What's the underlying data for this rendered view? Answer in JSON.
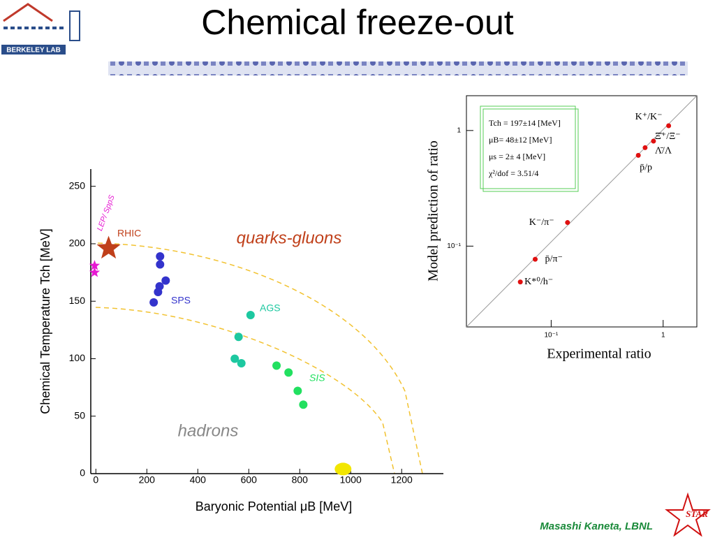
{
  "header": {
    "title": "Chemical freeze-out",
    "logo": "BERKELEY LAB"
  },
  "footer": {
    "author": "Masashi Kaneta, LBNL",
    "badge": "STAR"
  },
  "chart_data": [
    {
      "type": "scatter",
      "xlabel": "Baryonic Potential μB [MeV]",
      "ylabel": "Chemical Temperature Tch [MeV]",
      "xlim": [
        -20,
        1350
      ],
      "ylim": [
        0,
        265
      ],
      "xticks": [
        0,
        200,
        400,
        600,
        800,
        1000,
        1200
      ],
      "yticks": [
        0,
        50,
        100,
        150,
        200,
        250
      ],
      "annotations": [
        "quarks-gluons",
        "hadrons"
      ],
      "series": [
        {
          "name": "LEP/ SppS",
          "color": "#e619d2",
          "marker": "star",
          "x": [
            -5,
            -5
          ],
          "y": [
            175,
            181
          ]
        },
        {
          "name": "RHIC",
          "color": "#c0401a",
          "marker": "bigstar",
          "x": [
            50
          ],
          "y": [
            196
          ]
        },
        {
          "name": "SPS",
          "color": "#3333cc",
          "marker": "circle",
          "x": [
            252,
            252,
            274,
            250,
            244,
            227
          ],
          "y": [
            189,
            182,
            168,
            163,
            158,
            149
          ]
        },
        {
          "name": "AGS",
          "color": "#1dc8a0",
          "marker": "circle",
          "x": [
            607,
            560,
            545,
            571
          ],
          "y": [
            138,
            119,
            100,
            96
          ]
        },
        {
          "name": "SIS",
          "color": "#22e060",
          "marker": "circle",
          "x": [
            709,
            756,
            792,
            814
          ],
          "y": [
            94,
            88,
            72,
            60
          ]
        },
        {
          "color": "#f2e600",
          "marker": "circle",
          "x": [
            970
          ],
          "y": [
            4
          ]
        }
      ]
    },
    {
      "type": "scatter",
      "log": true,
      "xlabel": "Experimental ratio",
      "ylabel": "Model prediction of ratio",
      "xlim": [
        0.0175,
        2
      ],
      "ylim": [
        0.02,
        2
      ],
      "xticks": [
        {
          "value": 0.1,
          "label": "10⁻¹"
        },
        1
      ],
      "yticks": [
        {
          "value": 0.1,
          "label": "10⁻¹"
        },
        1
      ],
      "legend": [
        "Tch = 197±14 [MeV]",
        "μB= 48±12 [MeV]",
        "μs = 2± 4 [MeV]",
        "χ²/dof = 3.51/4"
      ],
      "color": "#e01010",
      "series": [
        {
          "names": [
            "K⁺/K⁻",
            "Ξ̄⁺/Ξ⁻",
            "Λ̄/Λ",
            "p̄/p",
            "K⁻/π⁻",
            "p̄/π⁻",
            "K*⁰/h⁻"
          ],
          "x": [
            1.12,
            0.82,
            0.69,
            0.6,
            0.14,
            0.072,
            0.053
          ],
          "y": [
            1.1,
            0.81,
            0.71,
            0.61,
            0.16,
            0.077,
            0.049
          ]
        }
      ]
    }
  ]
}
